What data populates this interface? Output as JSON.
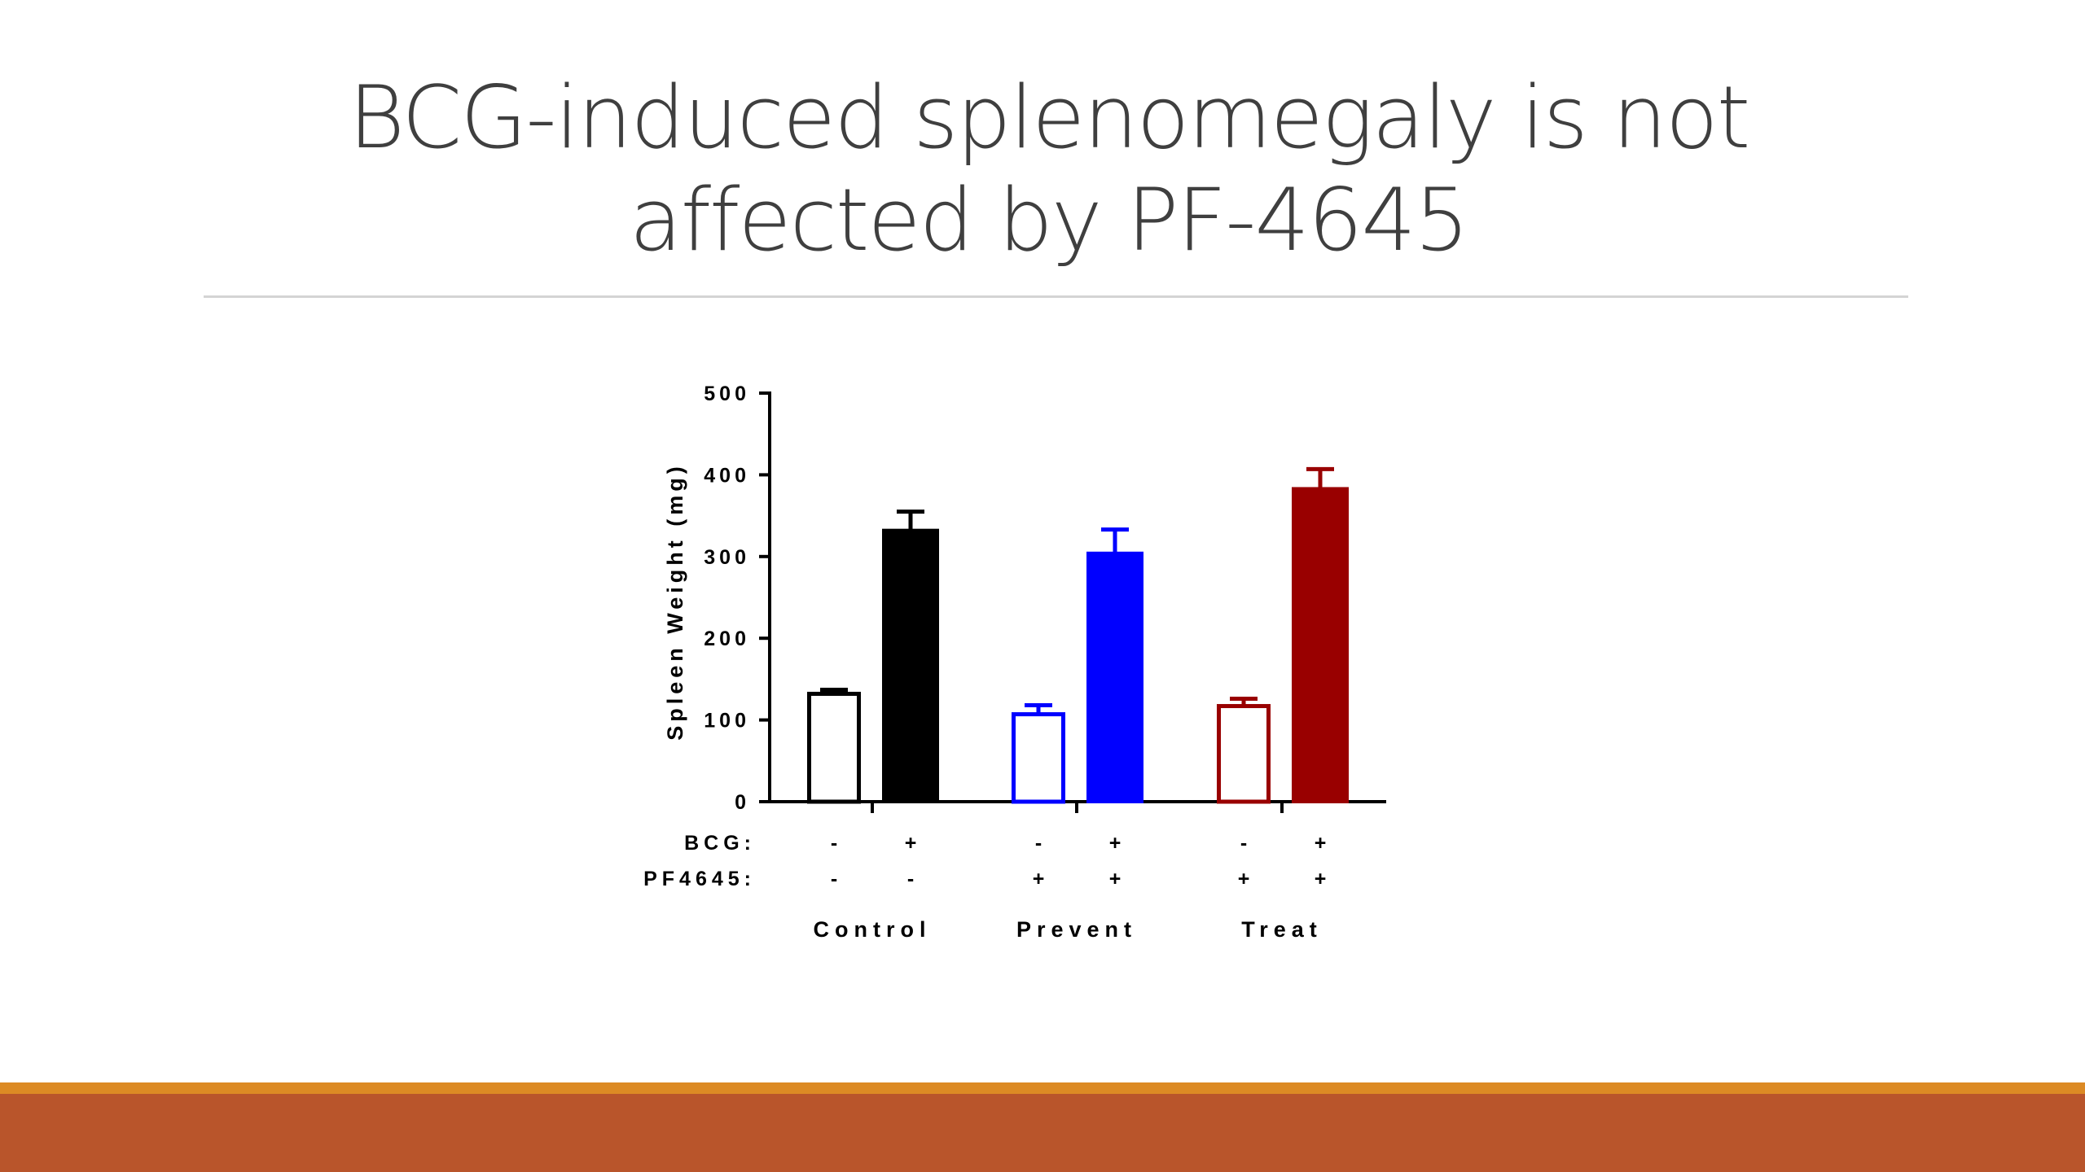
{
  "slide": {
    "title": "BCG-induced splenomegaly is not affected by PF-4645",
    "accent_colors": {
      "gold": "#dc8a24",
      "rust": "#b9552b"
    }
  },
  "chart_data": {
    "type": "bar",
    "title": "",
    "ylabel": "Spleen Weight (mg)",
    "xlabel": "",
    "ylim": [
      0,
      500
    ],
    "yticks": [
      0,
      100,
      200,
      300,
      400,
      500
    ],
    "grid": false,
    "legend": "none",
    "row_labels": [
      "BCG:",
      "PF4645:"
    ],
    "groups": [
      {
        "name": "Control",
        "color": "#000000",
        "bars": [
          {
            "bcg": "-",
            "pf4645": "-",
            "value": 132,
            "error": 5,
            "filled": false
          },
          {
            "bcg": "+",
            "pf4645": "-",
            "value": 332,
            "error": 23,
            "filled": true
          }
        ]
      },
      {
        "name": "Prevent",
        "color": "#0000ff",
        "bars": [
          {
            "bcg": "-",
            "pf4645": "+",
            "value": 107,
            "error": 11,
            "filled": false
          },
          {
            "bcg": "+",
            "pf4645": "+",
            "value": 304,
            "error": 29,
            "filled": true
          }
        ]
      },
      {
        "name": "Treat",
        "color": "#990000",
        "bars": [
          {
            "bcg": "-",
            "pf4645": "+",
            "value": 117,
            "error": 9,
            "filled": false
          },
          {
            "bcg": "+",
            "pf4645": "+",
            "value": 383,
            "error": 24,
            "filled": true
          }
        ]
      }
    ]
  }
}
